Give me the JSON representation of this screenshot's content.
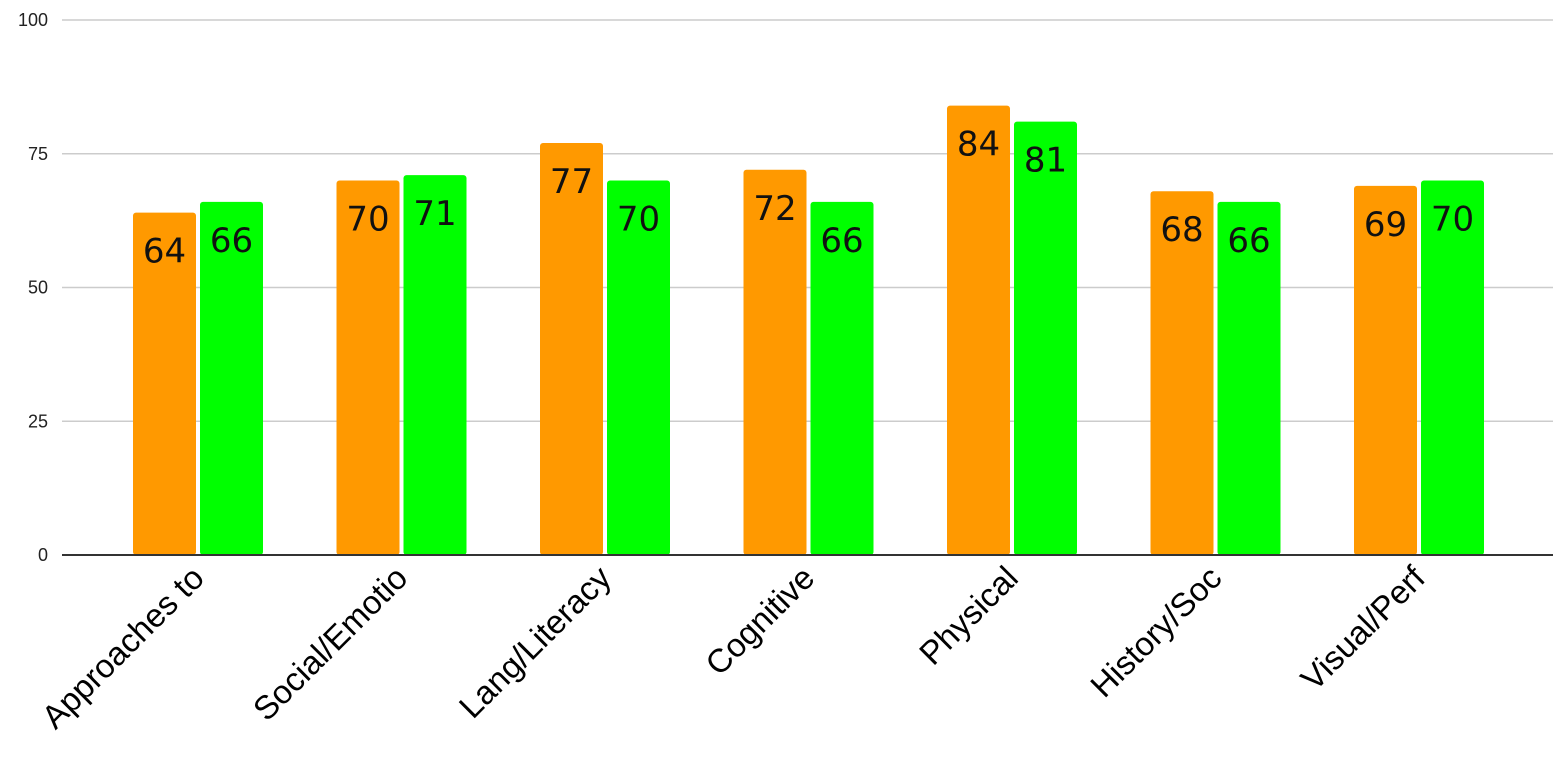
{
  "chart_data": {
    "type": "bar",
    "categories": [
      "Approaches to",
      "Social/Emotio",
      "Lang/Literacy",
      "Cognitive",
      "Physical",
      "History/Soc",
      "Visual/Perf"
    ],
    "series": [
      {
        "values": [
          64,
          70,
          77,
          72,
          84,
          68,
          69
        ],
        "color": "#ff9900"
      },
      {
        "values": [
          66,
          71,
          70,
          66,
          81,
          66,
          70
        ],
        "color": "#00ff00"
      }
    ],
    "ylim": [
      0,
      100
    ],
    "yticks": [
      0,
      25,
      50,
      75,
      100
    ],
    "grid": true,
    "data_labels": true,
    "legend": "none",
    "title": "",
    "xlabel": "",
    "ylabel": ""
  }
}
